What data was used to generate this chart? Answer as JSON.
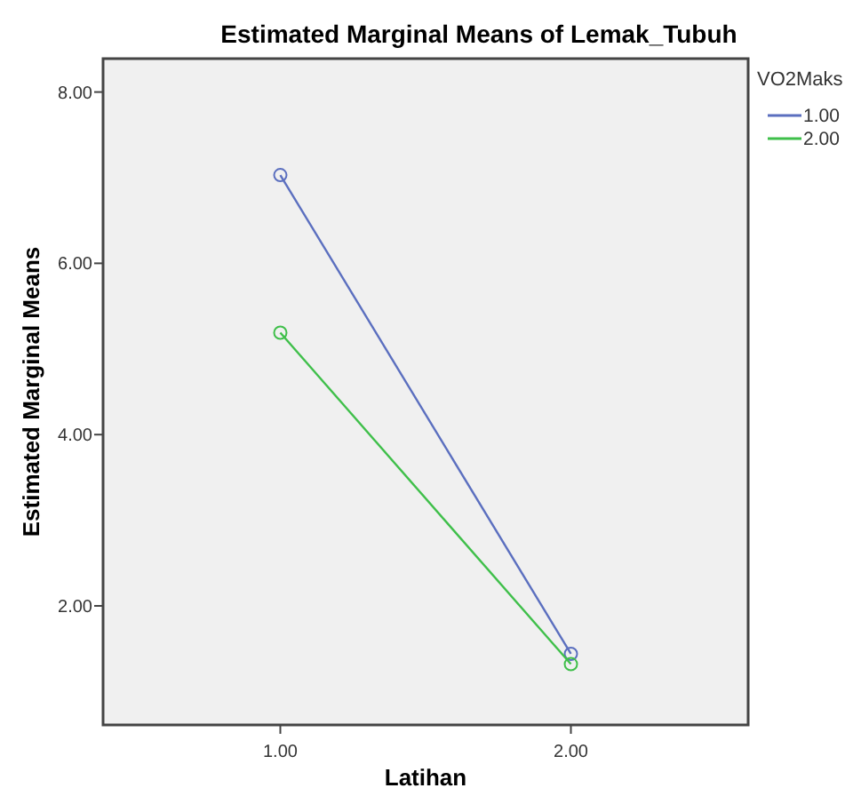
{
  "chart_data": {
    "type": "line",
    "title": "Estimated Marginal Means of Lemak_Tubuh",
    "xlabel": "Latihan",
    "ylabel": "Estimated Marginal Means",
    "legend_title": "VO2Maks",
    "categories": [
      "1.00",
      "2.00"
    ],
    "series": [
      {
        "name": "1.00",
        "color": "#5b6fbf",
        "values": [
          7.03,
          1.44
        ]
      },
      {
        "name": "2.00",
        "color": "#3fbf4a",
        "values": [
          5.19,
          1.32
        ]
      }
    ],
    "ylim": [
      0.61,
      8.39
    ],
    "yticks": [
      {
        "value": 2,
        "label": "2.00"
      },
      {
        "value": 4,
        "label": "4.00"
      },
      {
        "value": 6,
        "label": "6.00"
      },
      {
        "value": 8,
        "label": "8.00"
      }
    ],
    "grid": false,
    "legend": "right",
    "marker": "circle",
    "line_style": "solid"
  }
}
